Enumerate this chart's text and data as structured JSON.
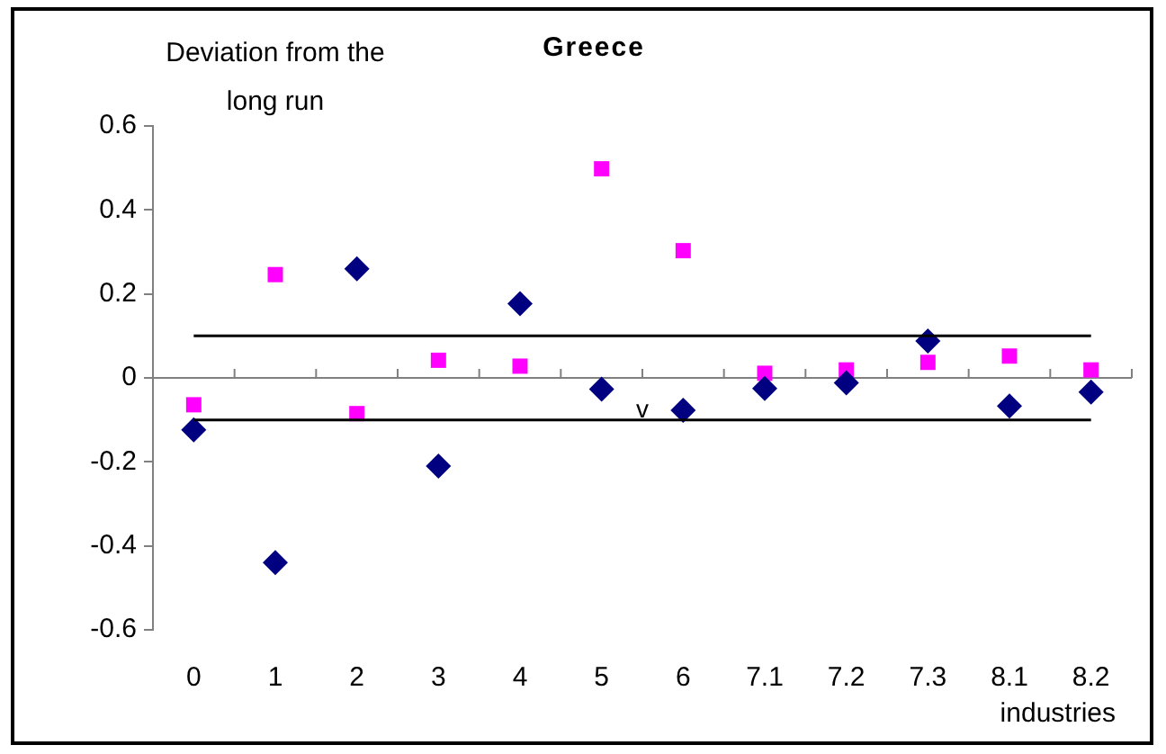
{
  "chart_data": {
    "type": "scatter",
    "title": "Greece",
    "ylabel": "Deviation from the long run",
    "xlabel": "industries",
    "categories": [
      "0",
      "1",
      "2",
      "3",
      "4",
      "5",
      "6",
      "7.1",
      "7.2",
      "7.3",
      "8.1",
      "8.2"
    ],
    "series": [
      {
        "color": "#000080",
        "marker": "diamond",
        "values": [
          -0.124,
          -0.44,
          0.26,
          -0.21,
          0.177,
          -0.027,
          -0.077,
          -0.025,
          -0.012,
          0.088,
          -0.067,
          -0.034
        ]
      },
      {
        "color": "#ff00ff",
        "marker": "square",
        "values": [
          -0.064,
          0.246,
          -0.085,
          0.042,
          0.028,
          0.498,
          0.303,
          0.011,
          0.019,
          0.037,
          0.052,
          0.019
        ]
      }
    ],
    "ylim": [
      -0.6,
      0.6
    ],
    "yticks": [
      -0.6,
      -0.4,
      -0.2,
      0,
      0.2,
      0.4,
      0.6
    ],
    "ref_lines": [
      {
        "axis": "y",
        "value": 0.1,
        "color": "#000000"
      },
      {
        "axis": "y",
        "value": -0.1,
        "color": "#000000"
      }
    ],
    "annotations": [
      {
        "text": "v",
        "x": "5",
        "y": -0.1
      }
    ],
    "legend": false
  }
}
